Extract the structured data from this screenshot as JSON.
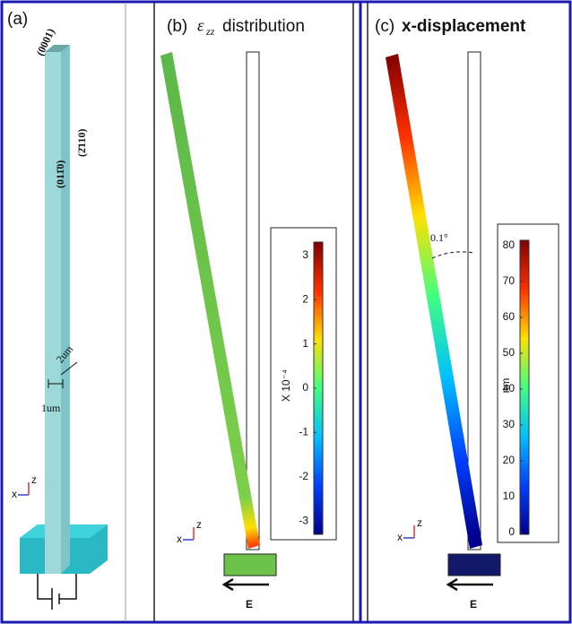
{
  "panels": [
    {
      "label": "(a)",
      "facets": [
        "(0001)",
        "(011̄0)",
        "(2̄110)"
      ],
      "dimensions": [
        "2um",
        "1um"
      ],
      "axes": [
        "x",
        "z"
      ]
    },
    {
      "label": "(b)",
      "symbol": "ε",
      "subscript": "zz",
      "title": "distribution",
      "axes": [
        "x",
        "z"
      ],
      "field": "E",
      "colorbar": {
        "label": "X 10⁻⁴",
        "lim": [
          -3.3,
          3.3
        ],
        "ticks": [
          3,
          2,
          1,
          0,
          -1,
          -2,
          -3
        ],
        "colormap": [
          "#00008f",
          "#0040ff",
          "#00c0ff",
          "#40ff80",
          "#ffe000",
          "#ff3000",
          "#800000"
        ]
      }
    },
    {
      "label": "(c)",
      "title": "x-displacement",
      "angle": "0.1°",
      "axes": [
        "x",
        "z"
      ],
      "field": "E",
      "colorbar": {
        "label": "nm",
        "lim": [
          -0.5,
          81.5
        ],
        "ticks": [
          0,
          10,
          20,
          30,
          40,
          50,
          60,
          70,
          80
        ],
        "colormap": [
          "#00008f",
          "#0040ff",
          "#00c0ff",
          "#40ff80",
          "#ffe000",
          "#ff3000",
          "#800000"
        ]
      }
    }
  ]
}
